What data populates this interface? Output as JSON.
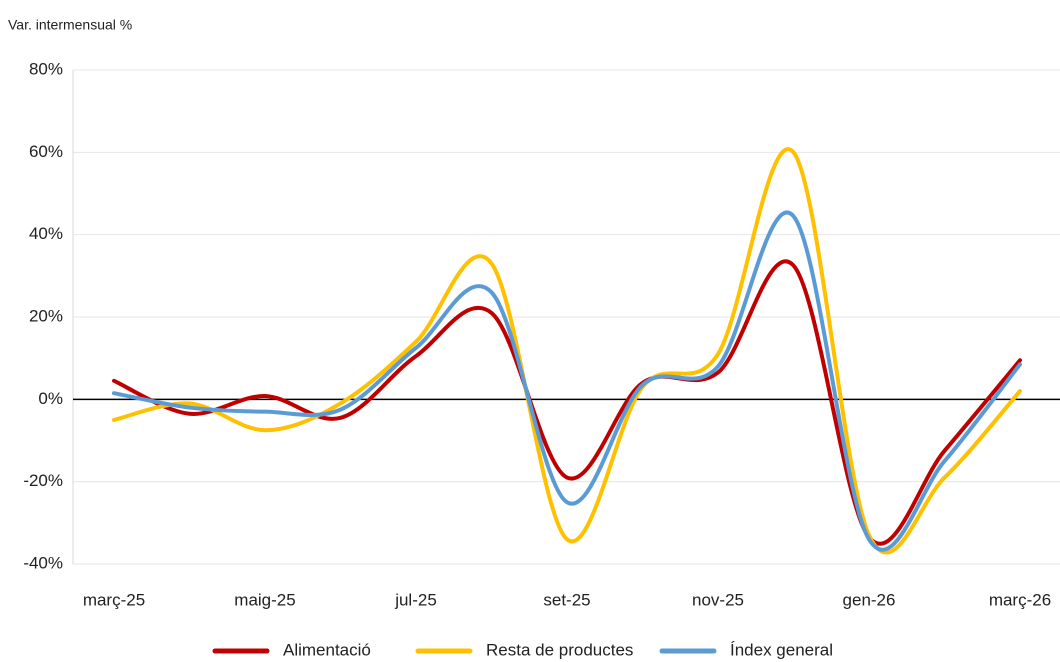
{
  "chart_data": {
    "type": "line",
    "y_label": "Var. intermensual %",
    "categories": [
      "març-25",
      null,
      "maig-25",
      null,
      "jul-25",
      null,
      "set-25",
      null,
      "nov-25",
      null,
      "gen-26",
      null,
      "març-26"
    ],
    "series": [
      {
        "name": "Alimentació",
        "color": "#c00000",
        "values": [
          4.5,
          -3.5,
          0.8,
          -4.5,
          10.5,
          21,
          -19,
          4,
          6.5,
          32.5,
          -33.5,
          -12.5,
          9.5
        ]
      },
      {
        "name": "Resta de productes",
        "color": "#ffc000",
        "values": [
          -5,
          -1,
          -7.5,
          -1,
          14,
          33,
          -34,
          3,
          11,
          60,
          -33,
          -19,
          2
        ]
      },
      {
        "name": "Índex general",
        "color": "#5b9bd5",
        "values": [
          1.5,
          -2,
          -3,
          -2.5,
          12.5,
          26,
          -25,
          3.5,
          8,
          44.5,
          -34,
          -15,
          8.5
        ]
      }
    ],
    "ylim": [
      -40,
      80
    ],
    "yticks": [
      {
        "value": -40,
        "label": "-40%"
      },
      {
        "value": -20,
        "label": "-20%"
      },
      {
        "value": 0,
        "label": "0%"
      },
      {
        "value": 20,
        "label": "20%"
      },
      {
        "value": 40,
        "label": "40%"
      },
      {
        "value": 60,
        "label": "60%"
      },
      {
        "value": 80,
        "label": "80%"
      }
    ],
    "grid": true,
    "smooth": true,
    "legend": "bottom"
  }
}
